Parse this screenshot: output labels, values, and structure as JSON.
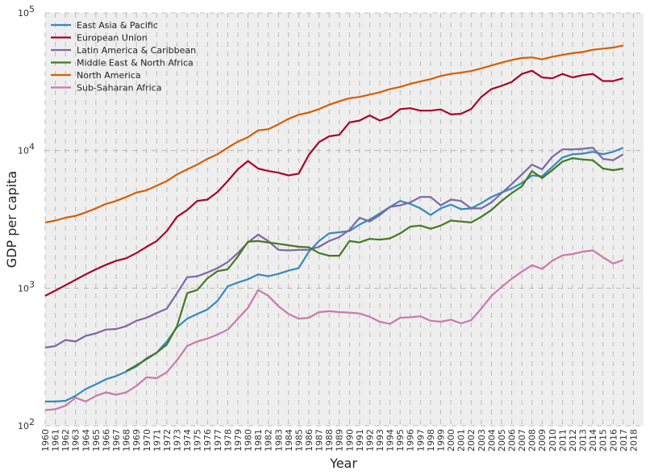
{
  "chart_data": {
    "type": "line",
    "title": "",
    "xlabel": "Year",
    "ylabel": "GDP per capita",
    "yscale": "log",
    "ylim": [
      100,
      100000
    ],
    "xlim": [
      1960,
      2019
    ],
    "grid": true,
    "legend_position": "top-left",
    "y_ticks": [
      {
        "value": 100,
        "base": "10",
        "exp": "2"
      },
      {
        "value": 1000,
        "base": "10",
        "exp": "3"
      },
      {
        "value": 10000,
        "base": "10",
        "exp": "4"
      },
      {
        "value": 100000,
        "base": "10",
        "exp": "5"
      }
    ],
    "x_ticks": [
      "1960",
      "1961",
      "1962",
      "1963",
      "1964",
      "1965",
      "1966",
      "1967",
      "1968",
      "1969",
      "1970",
      "1971",
      "1972",
      "1973",
      "1974",
      "1975",
      "1976",
      "1977",
      "1978",
      "1979",
      "1980",
      "1981",
      "1982",
      "1983",
      "1984",
      "1985",
      "1986",
      "1987",
      "1988",
      "1989",
      "1990",
      "1991",
      "1992",
      "1993",
      "1994",
      "1995",
      "1996",
      "1997",
      "1998",
      "1999",
      "2000",
      "2001",
      "2002",
      "2003",
      "2004",
      "2005",
      "2006",
      "2007",
      "2008",
      "2009",
      "2010",
      "2011",
      "2012",
      "2013",
      "2014",
      "2015",
      "2016",
      "2017",
      "2018"
    ],
    "x": [
      1960,
      1961,
      1962,
      1963,
      1964,
      1965,
      1966,
      1967,
      1968,
      1969,
      1970,
      1971,
      1972,
      1973,
      1974,
      1975,
      1976,
      1977,
      1978,
      1979,
      1980,
      1981,
      1982,
      1983,
      1984,
      1985,
      1986,
      1987,
      1988,
      1989,
      1990,
      1991,
      1992,
      1993,
      1994,
      1995,
      1996,
      1997,
      1998,
      1999,
      2000,
      2001,
      2002,
      2003,
      2004,
      2005,
      2006,
      2007,
      2008,
      2009,
      2010,
      2011,
      2012,
      2013,
      2014,
      2015,
      2016,
      2017
    ],
    "series": [
      {
        "name": "East Asia & Pacific",
        "color": "#348abd",
        "values": [
          150,
          150,
          152,
          165,
          185,
          200,
          218,
          230,
          248,
          270,
          310,
          340,
          410,
          520,
          600,
          650,
          700,
          810,
          1030,
          1100,
          1160,
          1260,
          1220,
          1270,
          1340,
          1400,
          1840,
          2200,
          2500,
          2550,
          2600,
          2900,
          3150,
          3500,
          3900,
          4300,
          4100,
          3800,
          3400,
          3800,
          4050,
          3750,
          3800,
          4150,
          4600,
          4950,
          5300,
          5800,
          6600,
          6500,
          7600,
          8900,
          9400,
          9500,
          9800,
          9400,
          9800,
          10500
        ]
      },
      {
        "name": "European Union",
        "color": "#a60628",
        "values": [
          880,
          960,
          1050,
          1150,
          1260,
          1370,
          1480,
          1580,
          1650,
          1800,
          2000,
          2200,
          2600,
          3300,
          3700,
          4300,
          4400,
          5000,
          6000,
          7300,
          8400,
          7400,
          7100,
          6900,
          6600,
          6800,
          9300,
          11500,
          12700,
          13000,
          16000,
          16500,
          18000,
          16500,
          17500,
          20000,
          20300,
          19500,
          19500,
          19900,
          18300,
          18500,
          20000,
          24500,
          28000,
          29500,
          31500,
          36000,
          38000,
          34000,
          33500,
          36000,
          34000,
          35300,
          36000,
          32000,
          32000,
          33500
        ]
      },
      {
        "name": "Latin America & Caribbean",
        "color": "#7a68a6",
        "values": [
          370,
          380,
          420,
          410,
          450,
          470,
          500,
          505,
          530,
          580,
          610,
          660,
          710,
          920,
          1200,
          1220,
          1300,
          1400,
          1550,
          1800,
          2150,
          2450,
          2200,
          1900,
          1880,
          1900,
          1900,
          2000,
          2200,
          2350,
          2650,
          3250,
          3050,
          3400,
          3900,
          4000,
          4200,
          4600,
          4600,
          4000,
          4400,
          4300,
          3800,
          3800,
          4200,
          4900,
          5700,
          6700,
          7900,
          7300,
          9000,
          10200,
          10200,
          10300,
          10500,
          8700,
          8500,
          9400
        ]
      },
      {
        "name": "Middle East & North Africa",
        "color": "#467821",
        "values": [
          null,
          null,
          null,
          null,
          null,
          null,
          null,
          null,
          250,
          275,
          305,
          340,
          390,
          530,
          920,
          970,
          1180,
          1330,
          1370,
          1700,
          2180,
          2200,
          2150,
          2100,
          2050,
          2000,
          1980,
          1800,
          1720,
          1720,
          2200,
          2150,
          2280,
          2250,
          2300,
          2500,
          2800,
          2850,
          2700,
          2850,
          3100,
          3050,
          3000,
          3300,
          3700,
          4300,
          4900,
          5500,
          7100,
          6300,
          7200,
          8300,
          8800,
          8600,
          8500,
          7400,
          7200,
          7400
        ]
      },
      {
        "name": "North America",
        "color": "#d55e00",
        "values": [
          3000,
          3100,
          3250,
          3350,
          3550,
          3800,
          4100,
          4300,
          4600,
          4950,
          5150,
          5550,
          6000,
          6700,
          7300,
          7900,
          8700,
          9400,
          10500,
          11600,
          12500,
          14000,
          14300,
          15500,
          17000,
          18200,
          18900,
          20000,
          21500,
          22800,
          24000,
          24500,
          25500,
          26500,
          28000,
          29000,
          30500,
          31800,
          33000,
          34800,
          36000,
          36800,
          37800,
          39500,
          41500,
          43500,
          45500,
          47000,
          47500,
          46000,
          48000,
          49500,
          51000,
          52000,
          54000,
          55000,
          56000,
          58000
        ]
      },
      {
        "name": "Sub-Saharan Africa",
        "color": "#cc79a7",
        "values": [
          130,
          132,
          140,
          160,
          150,
          165,
          175,
          168,
          175,
          195,
          225,
          222,
          245,
          300,
          380,
          410,
          430,
          460,
          500,
          600,
          720,
          970,
          880,
          740,
          650,
          600,
          610,
          670,
          680,
          670,
          665,
          655,
          620,
          570,
          550,
          610,
          615,
          625,
          580,
          570,
          590,
          555,
          585,
          710,
          880,
          1020,
          1170,
          1320,
          1470,
          1380,
          1580,
          1730,
          1770,
          1840,
          1880,
          1680,
          1510,
          1600
        ]
      }
    ]
  }
}
